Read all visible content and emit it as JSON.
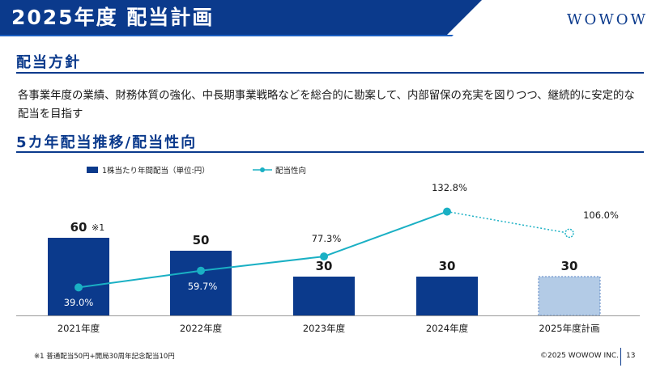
{
  "header": {
    "title": "2025年度 配当計画",
    "brand": "WOWOW"
  },
  "policy": {
    "heading": "配当方針",
    "text": "各事業年度の業績、財務体質の強化、中長期事業戦略などを総合的に勘案して、内部留保の充実を図りつつ、継続的に安定的な配当を目指す"
  },
  "trend": {
    "heading": "5カ年配当推移/配当性向"
  },
  "chart_data": {
    "type": "bar",
    "categories": [
      "2021年度",
      "2022年度",
      "2023年度",
      "2024年度",
      "2025年度計画"
    ],
    "series": [
      {
        "name": "1株当たり年間配当（単位:円）",
        "type": "bar",
        "values": [
          60,
          50,
          30,
          30,
          30
        ],
        "labels": [
          "60",
          "50",
          "30",
          "30",
          "30"
        ],
        "color": "#0b3a8c",
        "planned_color": "#b3cbe6"
      },
      {
        "name": "配当性向",
        "type": "line",
        "values": [
          39.0,
          59.7,
          77.3,
          132.8,
          106.0
        ],
        "labels": [
          "39.0%",
          "59.7%",
          "77.3%",
          "132.8%",
          "106.0%"
        ],
        "color": "#1ab0c4"
      }
    ],
    "planned_index": 4,
    "annotation": {
      "index": 0,
      "text": "※1"
    },
    "legend_position": "top-left",
    "grid": false
  },
  "footer": {
    "footnote": "※1 普通配当50円+開局30周年記念配当10円",
    "copyright": "©2025 WOWOW INC.",
    "page": "13"
  }
}
